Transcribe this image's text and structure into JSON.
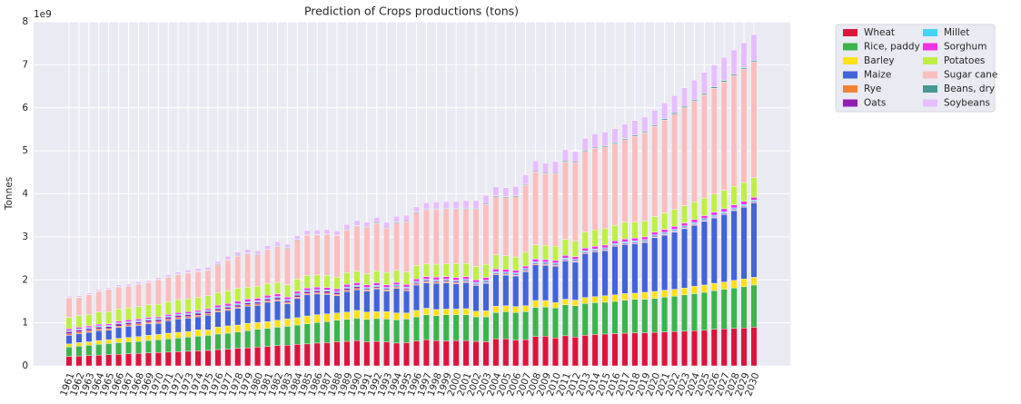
{
  "chart_data": {
    "type": "stacked_bar",
    "title": "Prediction of Crops productions (tons)",
    "y_label": "Tonnes",
    "y_offset_label": "1e9",
    "ylim": [
      0,
      8
    ],
    "yticks": [
      0,
      1,
      2,
      3,
      4,
      5,
      6,
      7,
      8
    ],
    "grid": true,
    "legend": "outside-right",
    "categories": [
      "1961",
      "1962",
      "1963",
      "1964",
      "1965",
      "1966",
      "1967",
      "1968",
      "1969",
      "1970",
      "1971",
      "1972",
      "1973",
      "1974",
      "1975",
      "1976",
      "1977",
      "1978",
      "1979",
      "1980",
      "1981",
      "1982",
      "1983",
      "1984",
      "1985",
      "1986",
      "1987",
      "1988",
      "1989",
      "1990",
      "1991",
      "1992",
      "1993",
      "1994",
      "1995",
      "1996",
      "1997",
      "1998",
      "1999",
      "2000",
      "2001",
      "2002",
      "2003",
      "2004",
      "2005",
      "2006",
      "2007",
      "2008",
      "2009",
      "2010",
      "2011",
      "2012",
      "2013",
      "2014",
      "2015",
      "2016",
      "2017",
      "2018",
      "2019",
      "2020",
      "2021",
      "2022",
      "2023",
      "2024",
      "2025",
      "2026",
      "2027",
      "2028",
      "2029",
      "2030"
    ],
    "series": [
      {
        "name": "Wheat",
        "color": "#dc143c",
        "values": [
          0.22,
          0.23,
          0.24,
          0.25,
          0.26,
          0.27,
          0.28,
          0.29,
          0.3,
          0.31,
          0.32,
          0.33,
          0.34,
          0.35,
          0.36,
          0.38,
          0.39,
          0.41,
          0.42,
          0.44,
          0.45,
          0.47,
          0.48,
          0.5,
          0.51,
          0.53,
          0.54,
          0.56,
          0.57,
          0.59,
          0.56,
          0.57,
          0.56,
          0.53,
          0.54,
          0.58,
          0.61,
          0.59,
          0.58,
          0.59,
          0.59,
          0.57,
          0.56,
          0.63,
          0.63,
          0.6,
          0.61,
          0.68,
          0.69,
          0.65,
          0.7,
          0.67,
          0.71,
          0.73,
          0.74,
          0.75,
          0.76,
          0.77,
          0.77,
          0.78,
          0.79,
          0.8,
          0.81,
          0.82,
          0.83,
          0.85,
          0.86,
          0.87,
          0.88,
          0.9
        ]
      },
      {
        "name": "Rice, paddy",
        "color": "#3cb44b",
        "values": [
          0.22,
          0.23,
          0.24,
          0.25,
          0.26,
          0.27,
          0.28,
          0.28,
          0.29,
          0.3,
          0.31,
          0.32,
          0.33,
          0.34,
          0.35,
          0.36,
          0.37,
          0.38,
          0.4,
          0.41,
          0.42,
          0.43,
          0.44,
          0.45,
          0.47,
          0.48,
          0.49,
          0.5,
          0.51,
          0.52,
          0.52,
          0.53,
          0.53,
          0.54,
          0.55,
          0.56,
          0.58,
          0.58,
          0.61,
          0.6,
          0.6,
          0.57,
          0.58,
          0.61,
          0.63,
          0.64,
          0.65,
          0.68,
          0.68,
          0.7,
          0.72,
          0.73,
          0.74,
          0.74,
          0.74,
          0.75,
          0.77,
          0.78,
          0.78,
          0.79,
          0.81,
          0.82,
          0.84,
          0.86,
          0.88,
          0.9,
          0.92,
          0.94,
          0.96,
          0.98
        ]
      },
      {
        "name": "Barley",
        "color": "#ffe119",
        "values": [
          0.07,
          0.08,
          0.08,
          0.09,
          0.09,
          0.1,
          0.1,
          0.11,
          0.12,
          0.12,
          0.13,
          0.13,
          0.13,
          0.15,
          0.13,
          0.16,
          0.17,
          0.16,
          0.17,
          0.16,
          0.16,
          0.16,
          0.17,
          0.17,
          0.18,
          0.18,
          0.18,
          0.17,
          0.17,
          0.18,
          0.17,
          0.16,
          0.17,
          0.16,
          0.14,
          0.15,
          0.15,
          0.14,
          0.13,
          0.13,
          0.14,
          0.13,
          0.14,
          0.15,
          0.14,
          0.14,
          0.14,
          0.16,
          0.15,
          0.12,
          0.13,
          0.13,
          0.14,
          0.14,
          0.15,
          0.15,
          0.15,
          0.14,
          0.16,
          0.16,
          0.16,
          0.16,
          0.16,
          0.17,
          0.17,
          0.17,
          0.17,
          0.18,
          0.18,
          0.18
        ]
      },
      {
        "name": "Maize",
        "color": "#4363d8",
        "values": [
          0.2,
          0.21,
          0.22,
          0.23,
          0.22,
          0.25,
          0.26,
          0.26,
          0.27,
          0.26,
          0.29,
          0.31,
          0.31,
          0.3,
          0.34,
          0.35,
          0.36,
          0.39,
          0.4,
          0.4,
          0.45,
          0.45,
          0.35,
          0.45,
          0.49,
          0.48,
          0.45,
          0.4,
          0.48,
          0.48,
          0.49,
          0.53,
          0.48,
          0.57,
          0.52,
          0.59,
          0.59,
          0.61,
          0.61,
          0.59,
          0.61,
          0.6,
          0.64,
          0.73,
          0.71,
          0.71,
          0.79,
          0.83,
          0.82,
          0.85,
          0.89,
          0.88,
          1.02,
          1.04,
          1.05,
          1.13,
          1.14,
          1.15,
          1.16,
          1.25,
          1.28,
          1.33,
          1.38,
          1.42,
          1.48,
          1.52,
          1.57,
          1.62,
          1.67,
          1.73
        ]
      },
      {
        "name": "Rye",
        "color": "#f58231",
        "values": [
          0.035,
          0.035,
          0.035,
          0.035,
          0.035,
          0.035,
          0.035,
          0.035,
          0.035,
          0.035,
          0.035,
          0.035,
          0.035,
          0.035,
          0.035,
          0.03,
          0.03,
          0.03,
          0.03,
          0.03,
          0.03,
          0.03,
          0.03,
          0.03,
          0.03,
          0.03,
          0.03,
          0.03,
          0.03,
          0.03,
          0.025,
          0.025,
          0.025,
          0.025,
          0.025,
          0.025,
          0.025,
          0.025,
          0.025,
          0.025,
          0.017,
          0.017,
          0.017,
          0.017,
          0.017,
          0.017,
          0.017,
          0.017,
          0.017,
          0.017,
          0.014,
          0.014,
          0.014,
          0.014,
          0.014,
          0.014,
          0.014,
          0.014,
          0.014,
          0.014,
          0.013,
          0.013,
          0.013,
          0.013,
          0.013,
          0.013,
          0.013,
          0.013,
          0.013,
          0.013
        ]
      },
      {
        "name": "Oats",
        "color": "#911eb4",
        "values": [
          0.05,
          0.05,
          0.05,
          0.05,
          0.05,
          0.05,
          0.05,
          0.05,
          0.05,
          0.05,
          0.05,
          0.05,
          0.05,
          0.05,
          0.05,
          0.045,
          0.045,
          0.045,
          0.045,
          0.045,
          0.045,
          0.045,
          0.045,
          0.045,
          0.045,
          0.045,
          0.045,
          0.045,
          0.045,
          0.045,
          0.03,
          0.03,
          0.03,
          0.03,
          0.03,
          0.03,
          0.03,
          0.03,
          0.03,
          0.03,
          0.025,
          0.025,
          0.025,
          0.025,
          0.025,
          0.025,
          0.025,
          0.025,
          0.025,
          0.025,
          0.023,
          0.023,
          0.023,
          0.023,
          0.023,
          0.023,
          0.023,
          0.023,
          0.023,
          0.023,
          0.021,
          0.021,
          0.021,
          0.021,
          0.021,
          0.021,
          0.021,
          0.021,
          0.021,
          0.021
        ]
      },
      {
        "name": "Millet",
        "color": "#42d4f4",
        "values": [
          0.025,
          0.025,
          0.025,
          0.025,
          0.025,
          0.025,
          0.025,
          0.025,
          0.025,
          0.025,
          0.025,
          0.025,
          0.025,
          0.025,
          0.025,
          0.028,
          0.028,
          0.028,
          0.028,
          0.028,
          0.028,
          0.028,
          0.028,
          0.028,
          0.028,
          0.028,
          0.028,
          0.028,
          0.028,
          0.028,
          0.028,
          0.028,
          0.028,
          0.028,
          0.028,
          0.028,
          0.028,
          0.028,
          0.028,
          0.028,
          0.03,
          0.03,
          0.03,
          0.03,
          0.03,
          0.03,
          0.03,
          0.03,
          0.03,
          0.03,
          0.028,
          0.028,
          0.028,
          0.028,
          0.028,
          0.028,
          0.028,
          0.028,
          0.028,
          0.028,
          0.03,
          0.03,
          0.03,
          0.03,
          0.03,
          0.03,
          0.03,
          0.03,
          0.03,
          0.03
        ]
      },
      {
        "name": "Sorghum",
        "color": "#f032e6",
        "values": [
          0.04,
          0.04,
          0.04,
          0.04,
          0.04,
          0.04,
          0.04,
          0.04,
          0.04,
          0.04,
          0.04,
          0.04,
          0.04,
          0.04,
          0.04,
          0.06,
          0.06,
          0.06,
          0.06,
          0.06,
          0.06,
          0.06,
          0.06,
          0.06,
          0.06,
          0.06,
          0.06,
          0.06,
          0.06,
          0.06,
          0.06,
          0.06,
          0.06,
          0.06,
          0.06,
          0.06,
          0.06,
          0.06,
          0.06,
          0.06,
          0.06,
          0.06,
          0.06,
          0.06,
          0.06,
          0.06,
          0.06,
          0.06,
          0.06,
          0.06,
          0.065,
          0.065,
          0.065,
          0.065,
          0.065,
          0.065,
          0.065,
          0.065,
          0.065,
          0.065,
          0.07,
          0.07,
          0.07,
          0.07,
          0.07,
          0.07,
          0.07,
          0.07,
          0.07,
          0.07
        ]
      },
      {
        "name": "Potatoes",
        "color": "#bfef45",
        "values": [
          0.27,
          0.27,
          0.27,
          0.28,
          0.28,
          0.28,
          0.28,
          0.29,
          0.29,
          0.29,
          0.29,
          0.3,
          0.3,
          0.3,
          0.3,
          0.29,
          0.29,
          0.3,
          0.28,
          0.28,
          0.27,
          0.27,
          0.28,
          0.29,
          0.29,
          0.28,
          0.28,
          0.27,
          0.27,
          0.27,
          0.26,
          0.28,
          0.29,
          0.28,
          0.29,
          0.31,
          0.3,
          0.3,
          0.3,
          0.33,
          0.31,
          0.31,
          0.31,
          0.33,
          0.32,
          0.31,
          0.32,
          0.33,
          0.33,
          0.33,
          0.37,
          0.36,
          0.37,
          0.38,
          0.38,
          0.36,
          0.39,
          0.37,
          0.37,
          0.36,
          0.38,
          0.39,
          0.4,
          0.41,
          0.41,
          0.42,
          0.43,
          0.43,
          0.44,
          0.45
        ]
      },
      {
        "name": "Sugar cane",
        "color": "#fabebe",
        "values": [
          0.45,
          0.42,
          0.45,
          0.48,
          0.52,
          0.51,
          0.5,
          0.52,
          0.52,
          0.57,
          0.57,
          0.58,
          0.6,
          0.6,
          0.59,
          0.65,
          0.71,
          0.75,
          0.77,
          0.73,
          0.78,
          0.84,
          0.85,
          0.9,
          0.93,
          0.93,
          0.95,
          0.96,
          1.0,
          1.05,
          1.08,
          1.1,
          1.03,
          1.1,
          1.17,
          1.22,
          1.26,
          1.27,
          1.27,
          1.26,
          1.26,
          1.33,
          1.39,
          1.35,
          1.35,
          1.4,
          1.56,
          1.7,
          1.67,
          1.69,
          1.8,
          1.82,
          1.88,
          1.9,
          1.9,
          1.89,
          1.92,
          2.0,
          2.05,
          2.1,
          2.16,
          2.22,
          2.28,
          2.34,
          2.4,
          2.46,
          2.52,
          2.58,
          2.64,
          2.7
        ]
      },
      {
        "name": "Beans, dry",
        "color": "#469990",
        "values": [
          0.012,
          0.012,
          0.012,
          0.012,
          0.012,
          0.012,
          0.012,
          0.012,
          0.012,
          0.012,
          0.012,
          0.012,
          0.012,
          0.012,
          0.012,
          0.015,
          0.015,
          0.015,
          0.015,
          0.015,
          0.015,
          0.015,
          0.015,
          0.015,
          0.015,
          0.015,
          0.015,
          0.015,
          0.015,
          0.015,
          0.018,
          0.018,
          0.018,
          0.018,
          0.018,
          0.018,
          0.018,
          0.018,
          0.018,
          0.018,
          0.02,
          0.02,
          0.02,
          0.02,
          0.02,
          0.02,
          0.02,
          0.02,
          0.02,
          0.02,
          0.025,
          0.025,
          0.025,
          0.025,
          0.025,
          0.025,
          0.025,
          0.025,
          0.025,
          0.025,
          0.03,
          0.03,
          0.03,
          0.03,
          0.03,
          0.03,
          0.03,
          0.03,
          0.03,
          0.03
        ]
      },
      {
        "name": "Soybeans",
        "color": "#e6beff",
        "values": [
          0.03,
          0.03,
          0.03,
          0.03,
          0.03,
          0.04,
          0.04,
          0.04,
          0.04,
          0.04,
          0.05,
          0.05,
          0.06,
          0.06,
          0.06,
          0.06,
          0.08,
          0.08,
          0.09,
          0.08,
          0.09,
          0.09,
          0.08,
          0.09,
          0.1,
          0.1,
          0.1,
          0.1,
          0.11,
          0.11,
          0.1,
          0.12,
          0.12,
          0.14,
          0.13,
          0.13,
          0.14,
          0.16,
          0.16,
          0.16,
          0.18,
          0.18,
          0.19,
          0.21,
          0.21,
          0.22,
          0.22,
          0.23,
          0.22,
          0.26,
          0.26,
          0.24,
          0.28,
          0.31,
          0.32,
          0.33,
          0.34,
          0.34,
          0.34,
          0.35,
          0.37,
          0.4,
          0.43,
          0.46,
          0.49,
          0.51,
          0.54,
          0.56,
          0.58,
          0.6
        ]
      }
    ]
  }
}
